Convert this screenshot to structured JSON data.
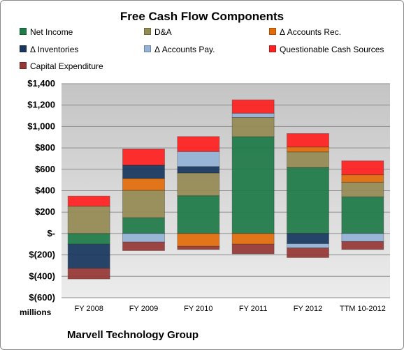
{
  "chart_data": {
    "type": "bar",
    "stacked": true,
    "title": "Free Cash Flow Components",
    "categories": [
      "FY 2008",
      "FY 2009",
      "FY 2010",
      "FY 2011",
      "FY 2012",
      "TTM 10-2012"
    ],
    "ylim": [
      -600,
      1400
    ],
    "yticks": [
      -600,
      -400,
      -200,
      0,
      200,
      400,
      600,
      800,
      1000,
      1200,
      1400
    ],
    "ytick_labels": [
      "$(600)",
      "$(400)",
      "$(200)",
      "$-",
      "$200",
      "$400",
      "$600",
      "$800",
      "$1,000",
      "$1,200",
      "$1,400"
    ],
    "units_label": "millions",
    "grid": true,
    "legend_position": "top",
    "series": [
      {
        "name": "Net Income",
        "color": "#1e7a47",
        "values": [
          -100,
          147,
          353,
          904,
          616,
          342
        ]
      },
      {
        "name": "D&A",
        "color": "#948a54",
        "values": [
          255,
          257,
          213,
          180,
          147,
          137
        ]
      },
      {
        "name": "Δ Accounts Rec.",
        "color": "#e36c09",
        "values": [
          0,
          110,
          -120,
          -100,
          46,
          70
        ]
      },
      {
        "name": "Δ Inventories",
        "color": "#17375e",
        "values": [
          -225,
          125,
          60,
          0,
          -95,
          0
        ]
      },
      {
        "name": "Δ Accounts Pay.",
        "color": "#95b3d7",
        "values": [
          0,
          -80,
          140,
          40,
          -40,
          -75
        ]
      },
      {
        "name": "Questionable Cash Sources",
        "color": "#ff2020",
        "values": [
          95,
          150,
          140,
          125,
          125,
          130
        ]
      },
      {
        "name": "Capital Expenditure",
        "color": "#953735",
        "values": [
          -100,
          -80,
          -30,
          -90,
          -90,
          -75
        ]
      }
    ]
  },
  "footer": {
    "company": "Marvell Technology Group"
  }
}
